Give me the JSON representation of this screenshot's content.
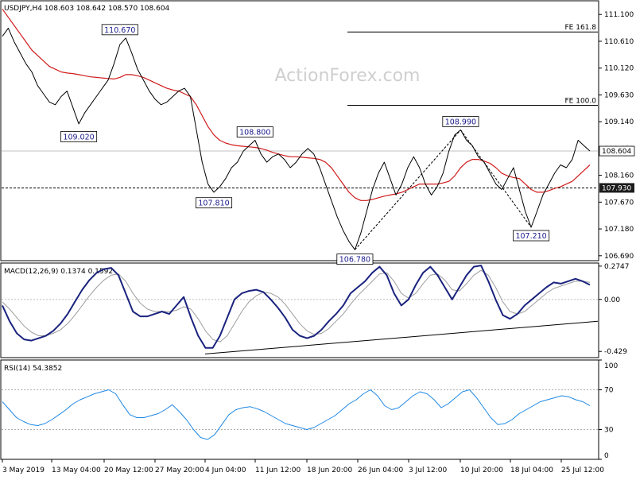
{
  "watermark": "ActionForex.com",
  "chart_data": [
    {
      "panel": "price",
      "type": "line",
      "title": "USDJPY,H4 108.603 108.642 108.570 108.604",
      "y_ticks": [
        106.69,
        107.18,
        107.67,
        108.16,
        108.65,
        109.14,
        109.63,
        110.12,
        110.61,
        111.1
      ],
      "y_tick_labels": [
        "106.690",
        "107.180",
        "107.670",
        "108.160",
        "108.650",
        "109.140",
        "109.630",
        "110.120",
        "110.610",
        "111.100"
      ],
      "ylim": [
        106.6,
        111.35
      ],
      "last_price": 108.604,
      "last_price_label": "108.604",
      "support_level": 107.93,
      "support_label": "107.930",
      "fib_levels": [
        {
          "label": "FE 161.8",
          "value": 110.78
        },
        {
          "label": "FE 100.0",
          "value": 109.44
        }
      ],
      "swing_labels": [
        {
          "text": "110.670",
          "i": 20,
          "value": 110.67
        },
        {
          "text": "109.020",
          "i": 13,
          "value": 109.02
        },
        {
          "text": "108.800",
          "i": 43,
          "value": 108.8
        },
        {
          "text": "107.810",
          "i": 36,
          "value": 107.81
        },
        {
          "text": "106.780",
          "i": 60,
          "value": 106.78
        },
        {
          "text": "108.990",
          "i": 78,
          "value": 108.99
        },
        {
          "text": "107.210",
          "i": 90,
          "value": 107.21
        }
      ],
      "series": [
        {
          "name": "price",
          "color": "#000000",
          "values": [
            110.7,
            110.85,
            110.6,
            110.4,
            110.2,
            110.05,
            109.8,
            109.65,
            109.5,
            109.45,
            109.6,
            109.7,
            109.4,
            109.1,
            109.3,
            109.45,
            109.6,
            109.75,
            109.9,
            110.2,
            110.55,
            110.67,
            110.4,
            110.1,
            109.9,
            109.7,
            109.55,
            109.45,
            109.5,
            109.6,
            109.7,
            109.75,
            109.6,
            109.0,
            108.4,
            108.0,
            107.85,
            107.95,
            108.1,
            108.3,
            108.4,
            108.6,
            108.7,
            108.8,
            108.55,
            108.4,
            108.5,
            108.55,
            108.45,
            108.3,
            108.4,
            108.55,
            108.65,
            108.55,
            108.3,
            108.0,
            107.7,
            107.4,
            107.15,
            106.95,
            106.8,
            107.1,
            107.5,
            107.9,
            108.2,
            108.4,
            108.1,
            107.8,
            108.0,
            108.3,
            108.5,
            108.3,
            108.0,
            107.8,
            107.95,
            108.2,
            108.6,
            108.9,
            108.99,
            108.8,
            108.7,
            108.5,
            108.4,
            108.2,
            108.0,
            107.9,
            108.1,
            108.3,
            107.9,
            107.5,
            107.21,
            107.5,
            107.8,
            108.0,
            108.2,
            108.35,
            108.3,
            108.45,
            108.8,
            108.7,
            108.604
          ]
        },
        {
          "name": "moving average",
          "color": "#d01c1c",
          "values": [
            111.2,
            111.05,
            110.9,
            110.75,
            110.6,
            110.45,
            110.35,
            110.25,
            110.15,
            110.1,
            110.05,
            110.03,
            110.02,
            110.0,
            109.98,
            109.96,
            109.95,
            109.94,
            109.93,
            109.92,
            109.95,
            110.0,
            110.0,
            109.98,
            109.95,
            109.9,
            109.85,
            109.8,
            109.75,
            109.72,
            109.7,
            109.65,
            109.6,
            109.45,
            109.25,
            109.05,
            108.9,
            108.8,
            108.75,
            108.72,
            108.7,
            108.69,
            108.68,
            108.67,
            108.65,
            108.62,
            108.58,
            108.55,
            108.52,
            108.5,
            108.5,
            108.49,
            108.48,
            108.47,
            108.45,
            108.4,
            108.3,
            108.15,
            108.0,
            107.85,
            107.75,
            107.7,
            107.7,
            107.72,
            107.75,
            107.78,
            107.8,
            107.82,
            107.85,
            107.9,
            107.95,
            108.0,
            108.0,
            108.0,
            108.0,
            108.02,
            108.05,
            108.15,
            108.3,
            108.4,
            108.45,
            108.45,
            108.42,
            108.38,
            108.3,
            108.2,
            108.15,
            108.12,
            108.1,
            108.0,
            107.9,
            107.85,
            107.85,
            107.88,
            107.92,
            107.95,
            108.0,
            108.05,
            108.15,
            108.25,
            108.35
          ]
        }
      ]
    },
    {
      "panel": "macd",
      "type": "line",
      "title": "MACD(12,26,9) 0.1374 0.1592",
      "ylim": [
        -0.48,
        0.3
      ],
      "y_ticks": [
        0.2747,
        0.0,
        -0.429
      ],
      "y_tick_labels": [
        "0.2747",
        "0.00",
        "-0.429"
      ],
      "series": [
        {
          "name": "MACD",
          "color": "#1a237e",
          "values": [
            -0.05,
            -0.18,
            -0.28,
            -0.33,
            -0.34,
            -0.32,
            -0.3,
            -0.26,
            -0.2,
            -0.12,
            -0.02,
            0.08,
            0.16,
            0.22,
            0.25,
            0.26,
            0.2,
            0.05,
            -0.1,
            -0.14,
            -0.14,
            -0.12,
            -0.1,
            -0.12,
            -0.05,
            0.02,
            -0.15,
            -0.3,
            -0.4,
            -0.4,
            -0.3,
            -0.15,
            0.0,
            0.05,
            0.07,
            0.08,
            0.06,
            0.0,
            -0.07,
            -0.15,
            -0.25,
            -0.3,
            -0.32,
            -0.3,
            -0.25,
            -0.18,
            -0.12,
            -0.05,
            0.05,
            0.1,
            0.15,
            0.22,
            0.27,
            0.2,
            0.05,
            -0.05,
            0.0,
            0.12,
            0.22,
            0.27,
            0.2,
            0.1,
            0.0,
            0.1,
            0.2,
            0.27,
            0.28,
            0.15,
            0.0,
            -0.13,
            -0.16,
            -0.12,
            -0.05,
            0.0,
            0.05,
            0.1,
            0.14,
            0.13,
            0.15,
            0.17,
            0.15,
            0.12
          ]
        },
        {
          "name": "Signal",
          "color": "#9e9e9e",
          "values": [
            -0.02,
            -0.08,
            -0.15,
            -0.22,
            -0.27,
            -0.3,
            -0.3,
            -0.28,
            -0.25,
            -0.2,
            -0.13,
            -0.05,
            0.03,
            0.1,
            0.16,
            0.2,
            0.21,
            0.15,
            0.05,
            -0.03,
            -0.08,
            -0.1,
            -0.1,
            -0.1,
            -0.09,
            -0.06,
            -0.08,
            -0.16,
            -0.26,
            -0.33,
            -0.35,
            -0.3,
            -0.2,
            -0.1,
            -0.02,
            0.03,
            0.06,
            0.05,
            0.02,
            -0.04,
            -0.12,
            -0.2,
            -0.26,
            -0.29,
            -0.28,
            -0.24,
            -0.18,
            -0.12,
            -0.04,
            0.03,
            0.09,
            0.15,
            0.21,
            0.22,
            0.15,
            0.05,
            0.01,
            0.05,
            0.13,
            0.2,
            0.21,
            0.16,
            0.08,
            0.07,
            0.13,
            0.2,
            0.24,
            0.2,
            0.1,
            -0.02,
            -0.1,
            -0.12,
            -0.1,
            -0.05,
            0.0,
            0.05,
            0.09,
            0.11,
            0.13,
            0.15,
            0.15,
            0.14
          ]
        },
        {
          "name": "Trendline",
          "color": "#000000",
          "values": [
            -0.45,
            -0.18
          ]
        }
      ]
    },
    {
      "panel": "rsi",
      "type": "line",
      "title": "RSI(14) 54.3852",
      "ylim": [
        0,
        100
      ],
      "y_ticks": [
        100,
        70,
        30,
        0
      ],
      "y_tick_labels": [
        "100",
        "70",
        "30",
        "0"
      ],
      "levels": [
        70,
        30
      ],
      "series": [
        {
          "name": "RSI",
          "color": "#1e88e5",
          "values": [
            58,
            50,
            42,
            38,
            35,
            34,
            36,
            40,
            45,
            50,
            56,
            60,
            63,
            66,
            68,
            70,
            66,
            55,
            45,
            42,
            42,
            44,
            46,
            50,
            55,
            48,
            40,
            30,
            22,
            20,
            25,
            35,
            45,
            50,
            52,
            53,
            51,
            48,
            44,
            40,
            36,
            34,
            32,
            30,
            32,
            36,
            40,
            44,
            50,
            56,
            60,
            66,
            70,
            64,
            54,
            50,
            52,
            58,
            64,
            68,
            66,
            60,
            52,
            56,
            62,
            68,
            70,
            62,
            52,
            42,
            35,
            36,
            40,
            46,
            50,
            54,
            58,
            60,
            62,
            64,
            63,
            60,
            58,
            54
          ]
        }
      ]
    }
  ],
  "x_axis_labels": [
    "3 May 2019",
    "13 May 04:00",
    "20 May 12:00",
    "27 May 20:00",
    "4 Jun 04:00",
    "11 Jun 12:00",
    "18 Jun 20:00",
    "26 Jun 04:00",
    "3 Jul 12:00",
    "10 Jul 20:00",
    "18 Jul 04:00",
    "25 Jul 12:00"
  ]
}
